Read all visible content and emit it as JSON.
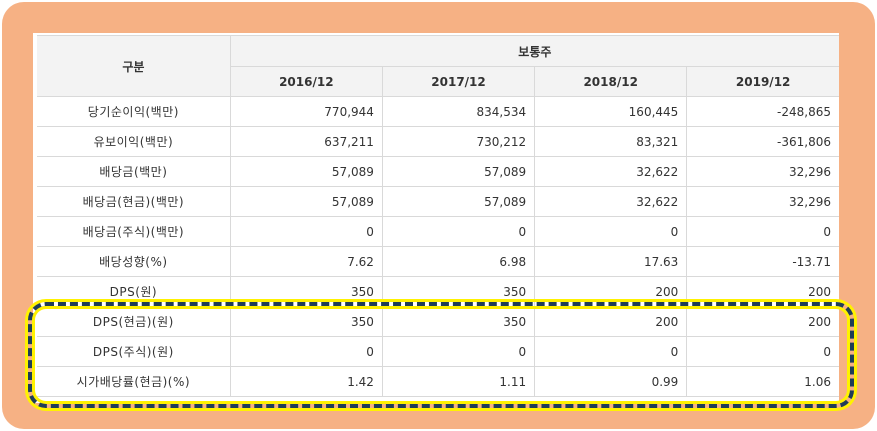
{
  "table": {
    "header_category": "구분",
    "header_group": "보통주",
    "years": [
      "2016/12",
      "2017/12",
      "2018/12",
      "2019/12"
    ],
    "rows": [
      {
        "label": "당기순이익(백만)",
        "values": [
          "770,944",
          "834,534",
          "160,445",
          "-248,865"
        ]
      },
      {
        "label": "유보이익(백만)",
        "values": [
          "637,211",
          "730,212",
          "83,321",
          "-361,806"
        ]
      },
      {
        "label": "배당금(백만)",
        "values": [
          "57,089",
          "57,089",
          "32,622",
          "32,296"
        ]
      },
      {
        "label": "배당금(현금)(백만)",
        "values": [
          "57,089",
          "57,089",
          "32,622",
          "32,296"
        ]
      },
      {
        "label": "배당금(주식)(백만)",
        "values": [
          "0",
          "0",
          "0",
          "0"
        ]
      },
      {
        "label": "배당성향(%)",
        "values": [
          "7.62",
          "6.98",
          "17.63",
          "-13.71"
        ]
      },
      {
        "label": "DPS(원)",
        "values": [
          "350",
          "350",
          "200",
          "200"
        ]
      },
      {
        "label": "DPS(현금)(원)",
        "values": [
          "350",
          "350",
          "200",
          "200"
        ]
      },
      {
        "label": "DPS(주식)(원)",
        "values": [
          "0",
          "0",
          "0",
          "0"
        ]
      },
      {
        "label": "시가배당률(현금)(%)",
        "values": [
          "1.42",
          "1.11",
          "0.99",
          "1.06"
        ]
      }
    ]
  },
  "colors": {
    "frame": "#f6b184",
    "highlight_border": "#1f3d57",
    "highlight_glow": "#fff200",
    "header_bg": "#f3f3f3",
    "grid": "#d9d9d9"
  }
}
